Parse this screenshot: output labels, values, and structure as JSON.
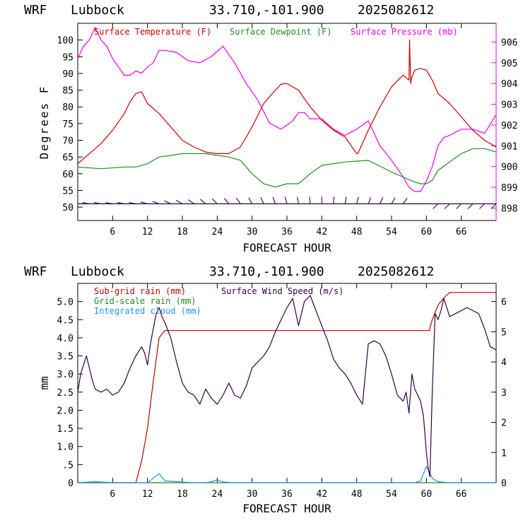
{
  "colors": {
    "temperature": "#cc0000",
    "dewpoint": "#228b22",
    "pressure": "#ee00ee",
    "wind_barbs": "#330044",
    "subgrid_rain": "#bb0000",
    "gridscale_rain": "#228b22",
    "cloud": "#1e90ff",
    "wind_speed": "#330044",
    "axes": "#000000",
    "right_axis_top": "#ee00ee"
  },
  "top_panel": {
    "header": {
      "model": "WRF",
      "site": "Lubbock",
      "coords": "33.710,-101.900",
      "run": "2025082612"
    },
    "legend": {
      "temperature": "Surface Temperature (F)",
      "dewpoint": "Surface Dewpoint (F)",
      "pressure": "Surface Pressure (mb)"
    },
    "ylabel": "Degrees F",
    "xlabel": "FORECAST HOUR"
  },
  "bottom_panel": {
    "header": {
      "model": "WRF",
      "site": "Lubbock",
      "coords": "33.710,-101.900",
      "run": "2025082612"
    },
    "legend": {
      "subgrid": "Sub-grid rain (mm)",
      "gridscale": "Grid-scale rain (mm)",
      "cloud": "Integrated cloud (mm)",
      "wind": "Surface Wind Speed (m/s)"
    },
    "ylabel": "mm",
    "xlabel": "FORECAST HOUR"
  },
  "chart_data": [
    {
      "type": "line",
      "title": "WRF Lubbock 33.710,-101.900 2025082612",
      "xlabel": "FORECAST HOUR",
      "ylabel": "Degrees F",
      "xlim": [
        0,
        72
      ],
      "ylim": [
        46,
        105
      ],
      "y2lim": [
        897.4,
        906.9
      ],
      "x_ticks": [
        6,
        12,
        18,
        24,
        30,
        36,
        42,
        48,
        54,
        60,
        66
      ],
      "y_ticks": [
        50,
        55,
        60,
        65,
        70,
        75,
        80,
        85,
        90,
        95,
        100
      ],
      "y2_ticks": [
        898,
        899,
        900,
        901,
        902,
        903,
        904,
        905,
        906
      ],
      "grid": false,
      "legend_position": "top",
      "series": [
        {
          "name": "Surface Temperature (F)",
          "axis": "left",
          "x": [
            0,
            2,
            4,
            6,
            8,
            9,
            10,
            11,
            12,
            14,
            16,
            18,
            20,
            22,
            24,
            26,
            28,
            30,
            32,
            34,
            35,
            36,
            38,
            40,
            42,
            44,
            46,
            48,
            48.2,
            50,
            52,
            54,
            56,
            57,
            57.1,
            57.3,
            57.5,
            58,
            59,
            60,
            61,
            62,
            64,
            66,
            68,
            70,
            72
          ],
          "y": [
            63,
            66,
            69,
            73,
            78,
            81.5,
            84,
            84.5,
            81,
            78,
            74,
            70,
            68,
            66.5,
            66,
            66,
            68,
            74,
            81,
            85,
            86.8,
            87,
            85,
            80,
            76,
            73,
            71,
            66,
            66,
            73,
            80,
            86,
            89.5,
            88,
            100,
            87,
            89,
            91,
            91.5,
            91,
            88,
            84,
            81,
            77,
            73,
            70,
            68
          ]
        },
        {
          "name": "Surface Dewpoint (F)",
          "axis": "left",
          "x": [
            0,
            4,
            8,
            10,
            12,
            14,
            18,
            22,
            26,
            28,
            30,
            32,
            34,
            36,
            38,
            40,
            42,
            46,
            50,
            54,
            56,
            58,
            59,
            60,
            61,
            62,
            64,
            66,
            68,
            70,
            72
          ],
          "y": [
            62,
            61.5,
            62,
            62,
            63,
            65,
            66,
            66,
            65,
            64,
            60,
            57,
            56,
            57,
            57,
            60,
            62.5,
            63.5,
            64,
            60.5,
            59,
            57.5,
            57,
            57,
            58,
            61,
            63.5,
            66,
            67.5,
            67.5,
            66.5
          ]
        },
        {
          "name": "Surface Pressure (mb)",
          "axis": "right",
          "x": [
            0,
            1,
            2,
            3,
            4,
            5,
            6,
            7,
            8,
            9,
            10,
            11,
            12,
            13,
            14,
            15,
            17,
            19,
            21,
            23,
            25,
            27,
            29,
            31,
            33,
            35,
            37,
            38,
            39,
            40,
            42,
            44,
            46,
            48,
            50,
            52,
            54,
            56,
            57,
            58,
            59,
            60,
            61,
            62,
            63,
            64,
            66,
            68,
            70,
            72
          ],
          "y": [
            905.2,
            905.8,
            906.1,
            906.7,
            906.1,
            905.8,
            905.2,
            904.8,
            904.4,
            904.4,
            904.6,
            904.5,
            904.8,
            905.0,
            905.6,
            905.6,
            905.5,
            905.1,
            905.0,
            905.3,
            905.8,
            905.0,
            904.0,
            903.2,
            902.1,
            901.8,
            902.2,
            902.6,
            902.6,
            902.3,
            902.3,
            901.8,
            901.5,
            901.8,
            902.2,
            901.0,
            900.3,
            899.5,
            899.0,
            898.8,
            898.8,
            899.3,
            900.0,
            901.0,
            901.4,
            901.5,
            901.8,
            901.8,
            901.6,
            902.5
          ]
        }
      ],
      "wind_barbs": {
        "hours": [
          2,
          4,
          6,
          8,
          10,
          12,
          14,
          16,
          18,
          20,
          22,
          24,
          26,
          28,
          30,
          32,
          34,
          36,
          38,
          40,
          42,
          44,
          46,
          48,
          50,
          52,
          54,
          56,
          58,
          60,
          62,
          64,
          66,
          68,
          70,
          72
        ],
        "direction_deg": [
          280,
          280,
          280,
          280,
          280,
          285,
          290,
          295,
          300,
          305,
          310,
          315,
          320,
          325,
          330,
          335,
          340,
          345,
          350,
          355,
          0,
          5,
          10,
          15,
          20,
          25,
          30,
          35,
          270,
          270,
          225,
          225,
          225,
          225,
          225,
          225
        ]
      }
    },
    {
      "type": "line",
      "title": "WRF Lubbock 33.710,-101.900 2025082612",
      "xlabel": "FORECAST HOUR",
      "ylabel": "mm",
      "xlim": [
        0,
        72
      ],
      "ylim": [
        0,
        5.5
      ],
      "y2lim": [
        0,
        6.6
      ],
      "x_ticks": [
        6,
        12,
        18,
        24,
        30,
        36,
        42,
        48,
        54,
        60,
        66
      ],
      "y_ticks": [
        0,
        0.5,
        1.0,
        1.5,
        2.0,
        2.5,
        3.0,
        3.5,
        4.0,
        4.5,
        5.0
      ],
      "y_tick_labels": [
        "0",
        ".5",
        "1.0",
        "1.5",
        "2.0",
        "2.5",
        "3.0",
        "3.5",
        "4.0",
        "4.5",
        "5.0"
      ],
      "y2_ticks": [
        0,
        1,
        2,
        3,
        4,
        5,
        6
      ],
      "grid": false,
      "legend_position": "top-left",
      "series": [
        {
          "name": "Sub-grid rain (mm)",
          "axis": "left",
          "x": [
            0,
            10,
            11,
            12,
            13,
            14,
            15,
            20,
            30,
            40,
            50,
            58,
            60.5,
            61,
            62,
            63,
            64,
            66,
            68,
            72
          ],
          "y": [
            0,
            0,
            0.6,
            1.5,
            2.8,
            4.0,
            4.2,
            4.2,
            4.2,
            4.2,
            4.2,
            4.2,
            4.2,
            4.5,
            4.9,
            5.1,
            5.25,
            5.25,
            5.25,
            5.25
          ]
        },
        {
          "name": "Grid-scale rain (mm)",
          "axis": "left",
          "x": [
            0,
            72
          ],
          "y": [
            0,
            0
          ]
        },
        {
          "name": "Integrated cloud (mm)",
          "axis": "left",
          "x": [
            0,
            2,
            3,
            4,
            6,
            12,
            13,
            14,
            15,
            20,
            22,
            23,
            24,
            25,
            27,
            58,
            59,
            60,
            60.5,
            61,
            62,
            64,
            72
          ],
          "y": [
            0,
            0.02,
            0.03,
            0.02,
            0,
            0,
            0.12,
            0.25,
            0.05,
            0,
            0,
            0.03,
            0.08,
            0.02,
            0,
            0,
            0.05,
            0.45,
            0.3,
            0.12,
            0.03,
            0,
            0
          ]
        },
        {
          "name": "Surface Wind Speed (m/s)",
          "axis": "right",
          "x": [
            0,
            0.5,
            1,
            1.5,
            2,
            2.5,
            3,
            4,
            5,
            6,
            7,
            8,
            9,
            10,
            11,
            11.5,
            12,
            12.5,
            13,
            13.5,
            14,
            14.5,
            15,
            16,
            17,
            18,
            19,
            20,
            21,
            22,
            23,
            24,
            25,
            26,
            27,
            28,
            29,
            30,
            31,
            32,
            33,
            34,
            35,
            36,
            37,
            38,
            39,
            40,
            41,
            42,
            43,
            44,
            45,
            46,
            47,
            48,
            49,
            50,
            51,
            52,
            53,
            54,
            55,
            56,
            56.5,
            57,
            57.5,
            58,
            59,
            59.5,
            60,
            60.3,
            60.6,
            61,
            61.5,
            62,
            62.5,
            63,
            63.5,
            64,
            65,
            66,
            67,
            68,
            69,
            70,
            71,
            72
          ],
          "y": [
            3,
            3.6,
            3.9,
            4.2,
            3.8,
            3.4,
            3.1,
            3.0,
            3.1,
            2.9,
            3.0,
            3.3,
            3.8,
            4.2,
            4.5,
            4.3,
            3.9,
            4.6,
            5.1,
            5.6,
            5.8,
            5.5,
            5.3,
            4.8,
            4.0,
            3.3,
            3.0,
            2.9,
            2.6,
            3.1,
            2.8,
            2.6,
            2.9,
            3.3,
            2.9,
            2.8,
            3.2,
            3.8,
            4.0,
            4.2,
            4.5,
            5.0,
            5.4,
            5.8,
            6.1,
            5.2,
            6.0,
            6.2,
            5.7,
            5.2,
            4.7,
            4.1,
            3.8,
            3.6,
            3.3,
            2.9,
            2.6,
            4.6,
            4.7,
            4.6,
            4.2,
            3.6,
            2.9,
            2.7,
            3.0,
            2.3,
            3.6,
            3.1,
            2.7,
            2.2,
            1.0,
            0.5,
            0.2,
            3.0,
            5.6,
            5.4,
            5.7,
            6.1,
            5.8,
            5.5,
            5.6,
            5.7,
            5.8,
            5.7,
            5.6,
            5.1,
            4.5,
            4.4
          ]
        }
      ]
    }
  ]
}
